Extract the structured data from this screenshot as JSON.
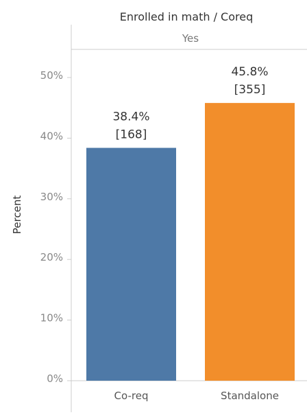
{
  "chart_data": {
    "type": "bar",
    "title": "Enrolled in math / Coreq",
    "column_header": "Yes",
    "ylabel": "Percent",
    "xlabel": "",
    "ylim": [
      0,
      55
    ],
    "y_ticks": [
      0,
      10,
      20,
      30,
      40,
      50
    ],
    "y_tick_labels": [
      "0%",
      "10%",
      "20%",
      "30%",
      "40%",
      "50%"
    ],
    "grid": false,
    "legend": "none",
    "categories": [
      "Co-req",
      "Standalone"
    ],
    "values": [
      38.4,
      45.8
    ],
    "value_labels": [
      "38.4%",
      "45.8%"
    ],
    "count_labels": [
      "[168]",
      "[355]"
    ],
    "colors": [
      "#4e79a7",
      "#f28e2b"
    ]
  }
}
